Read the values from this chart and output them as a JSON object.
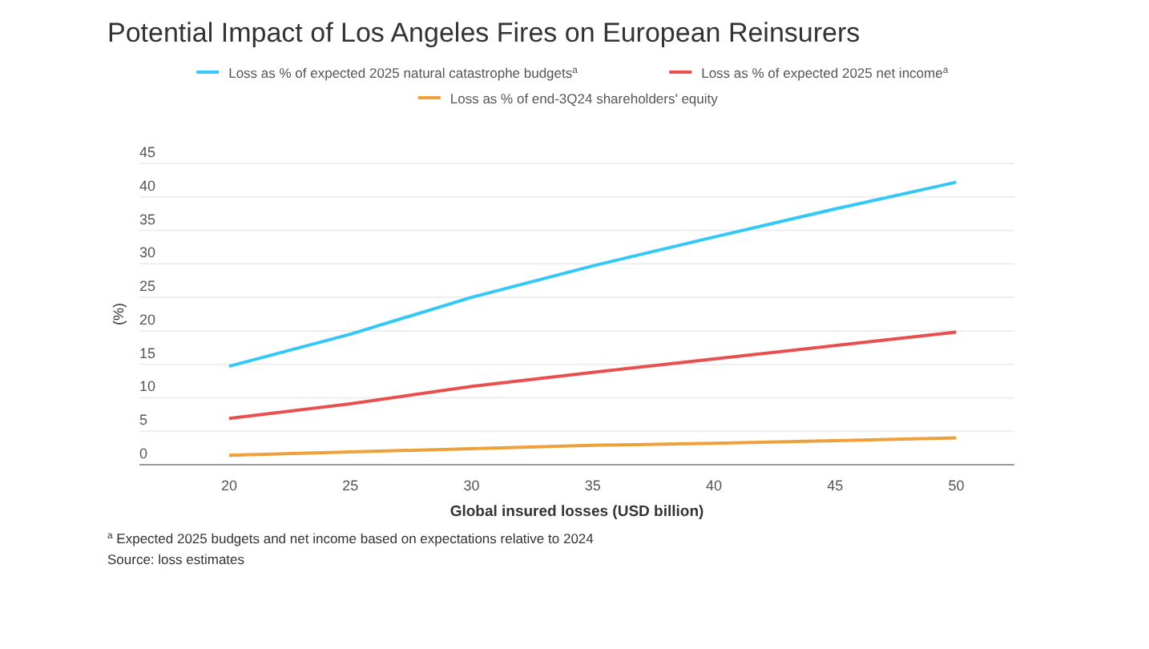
{
  "chart_data": {
    "type": "line",
    "title": "Potential Impact of Los Angeles Fires on European Reinsurers",
    "xlabel": "Global insured losses (USD billion)",
    "ylabel": "(%)",
    "x": [
      20,
      25,
      30,
      35,
      40,
      45,
      50
    ],
    "series": [
      {
        "name": "Loss as % of expected 2025 natural catastrophe budgets$^{a}$",
        "color": "#33c8f5",
        "values": [
          14.7,
          19.5,
          25,
          29.7,
          34,
          38.2,
          42.2
        ]
      },
      {
        "name": "Loss as % of expected 2025 net income$^{a}$",
        "color": "#e8504f",
        "values": [
          6.9,
          9.1,
          11.7,
          13.8,
          15.8,
          17.8,
          19.8
        ]
      },
      {
        "name": "Loss as % of end-3Q24 shareholders' equity",
        "color": "#eea03a",
        "values": [
          1.4,
          1.9,
          2.4,
          2.9,
          3.2,
          3.6,
          4.0
        ]
      }
    ],
    "xlim": [
      16.3,
      52.4
    ],
    "ylim": [
      0,
      45
    ],
    "xticks": [
      20,
      25,
      30,
      35,
      40,
      45,
      50
    ],
    "yticks": [
      0,
      5,
      10,
      15,
      20,
      25,
      30,
      35,
      40,
      45
    ],
    "grid": "y",
    "legend": "top",
    "marker": "none",
    "line_style": "solid",
    "annotations": [
      "$^{a}$ Expected 2025 budgets and net income based on expectations relative to 2024",
      "Source: loss estimates"
    ]
  }
}
